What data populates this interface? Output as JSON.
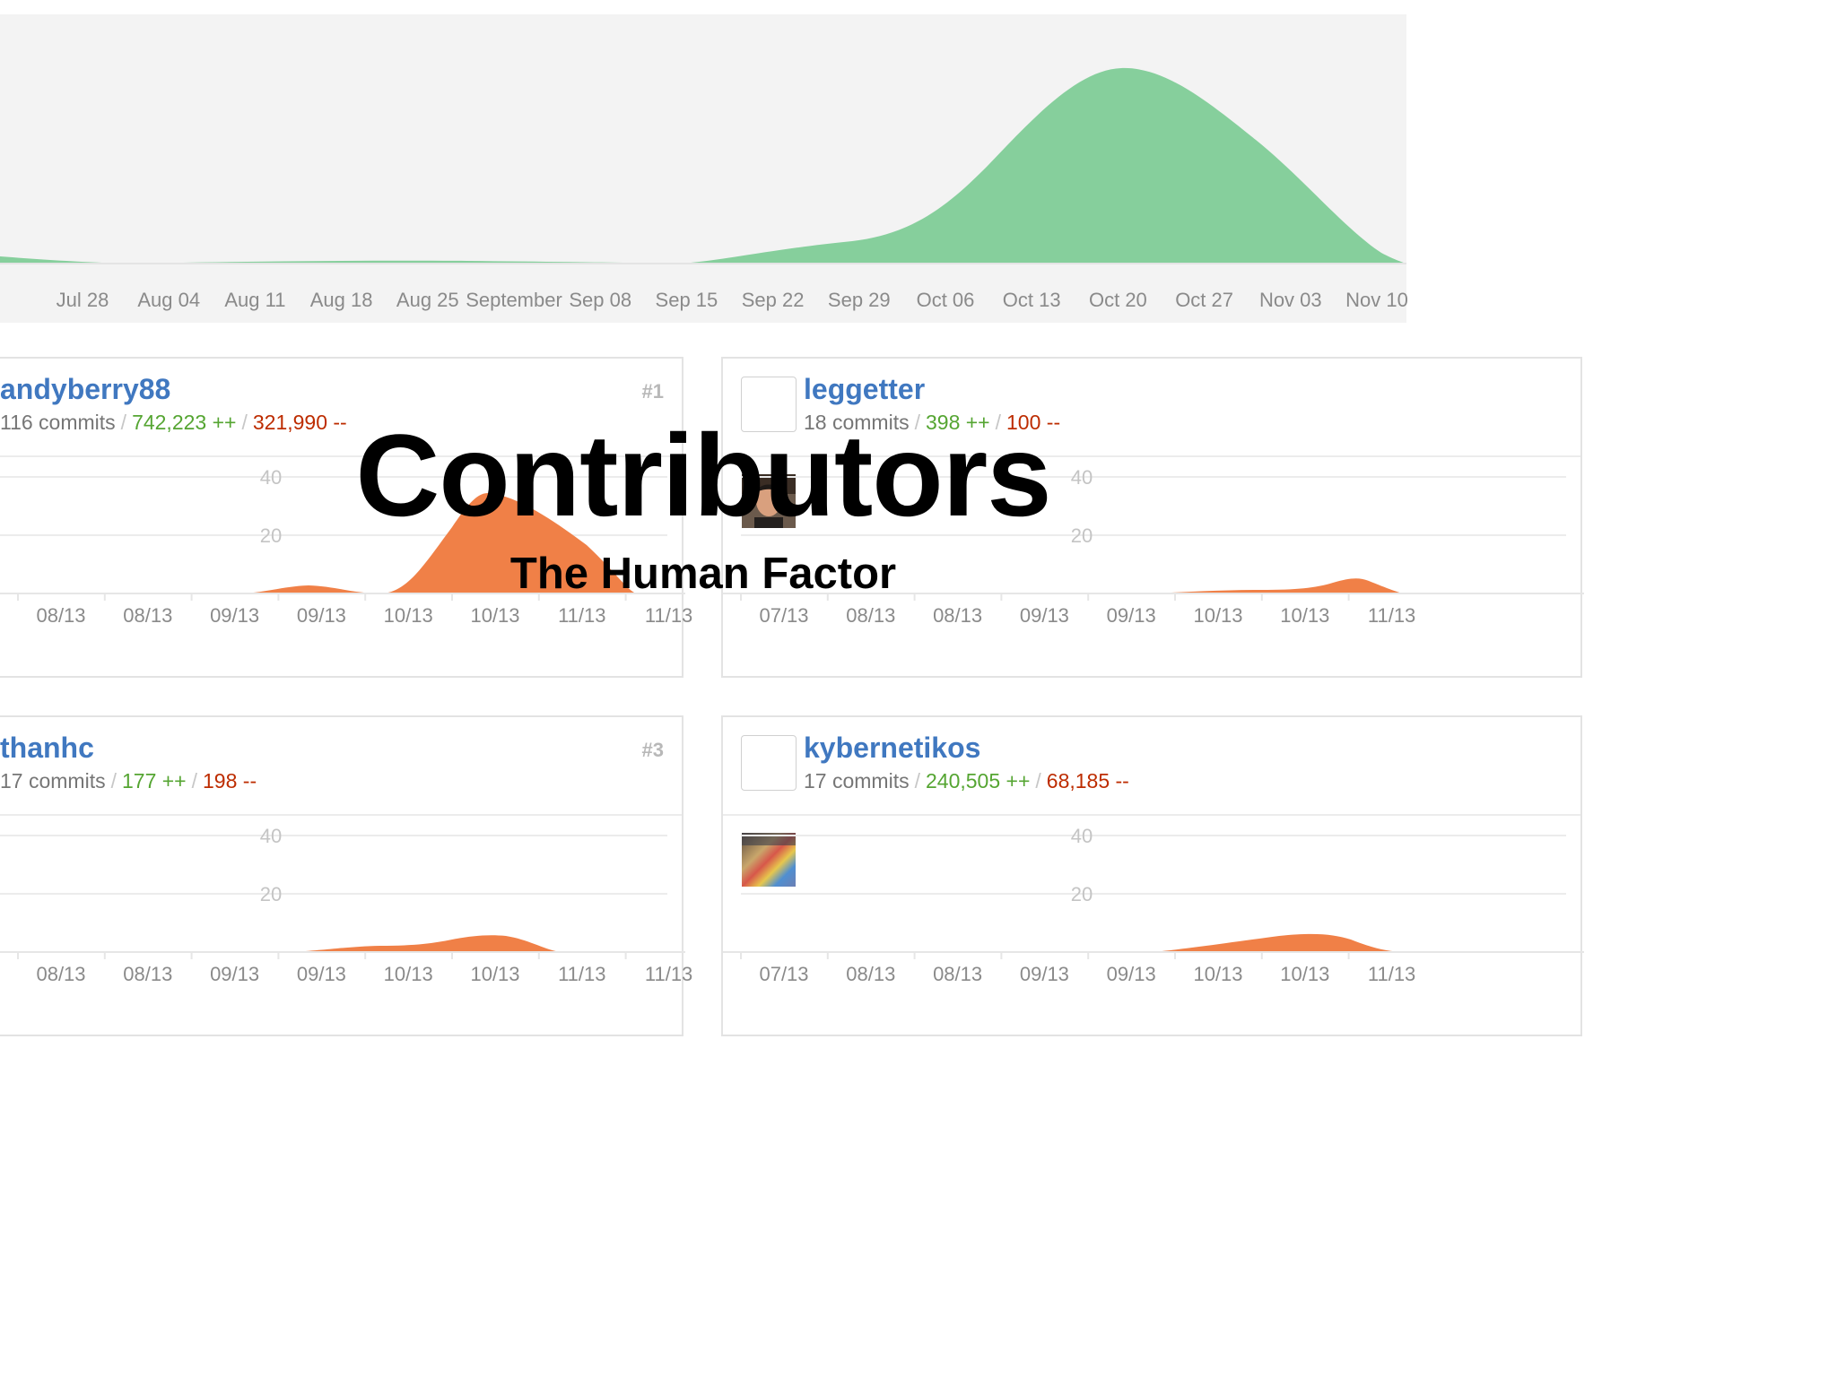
{
  "slide": {
    "title": "Contributors",
    "subtitle": "The Human Factor"
  },
  "colors": {
    "commit_area": "#86cf9c",
    "contributor_area": "#f08047",
    "link": "#4078c0",
    "additions": "#55a532",
    "deletions": "#bd2c00"
  },
  "overview_chart": {
    "x_labels": [
      "Jul 28",
      "Aug 04",
      "Aug 11",
      "Aug 18",
      "Aug 25",
      "September",
      "Sep 08",
      "Sep 15",
      "Sep 22",
      "Sep 29",
      "Oct 06",
      "Oct 13",
      "Oct 20",
      "Oct 27",
      "Nov 03",
      "Nov 10"
    ]
  },
  "contributors": [
    {
      "name": "andyberry88",
      "commits": "116 commits",
      "additions": "742,223 ++",
      "deletions": "321,990 --",
      "rank": "#1",
      "avatar": "none",
      "y_ticks": [
        "40",
        "20"
      ],
      "x_labels": [
        "08/13",
        "08/13",
        "09/13",
        "09/13",
        "10/13",
        "10/13",
        "11/13",
        "11/13"
      ]
    },
    {
      "name": "leggetter",
      "commits": "18 commits",
      "additions": "398 ++",
      "deletions": "100 --",
      "rank": "",
      "avatar": "portrait-icon",
      "y_ticks": [
        "40",
        "20"
      ],
      "x_labels": [
        "07/13",
        "08/13",
        "08/13",
        "09/13",
        "09/13",
        "10/13",
        "10/13",
        "11/13"
      ]
    },
    {
      "name": "thanhc",
      "commits": "17 commits",
      "additions": "177 ++",
      "deletions": "198 --",
      "rank": "#3",
      "avatar": "none",
      "y_ticks": [
        "40",
        "20"
      ],
      "x_labels": [
        "08/13",
        "08/13",
        "09/13",
        "09/13",
        "10/13",
        "10/13",
        "11/13",
        "11/13"
      ]
    },
    {
      "name": "kybernetikos",
      "commits": "17 commits",
      "additions": "240,505 ++",
      "deletions": "68,185 --",
      "rank": "",
      "avatar": "rainbow-pattern-icon",
      "y_ticks": [
        "40",
        "20"
      ],
      "x_labels": [
        "07/13",
        "08/13",
        "08/13",
        "09/13",
        "09/13",
        "10/13",
        "10/13",
        "11/13"
      ]
    }
  ]
}
